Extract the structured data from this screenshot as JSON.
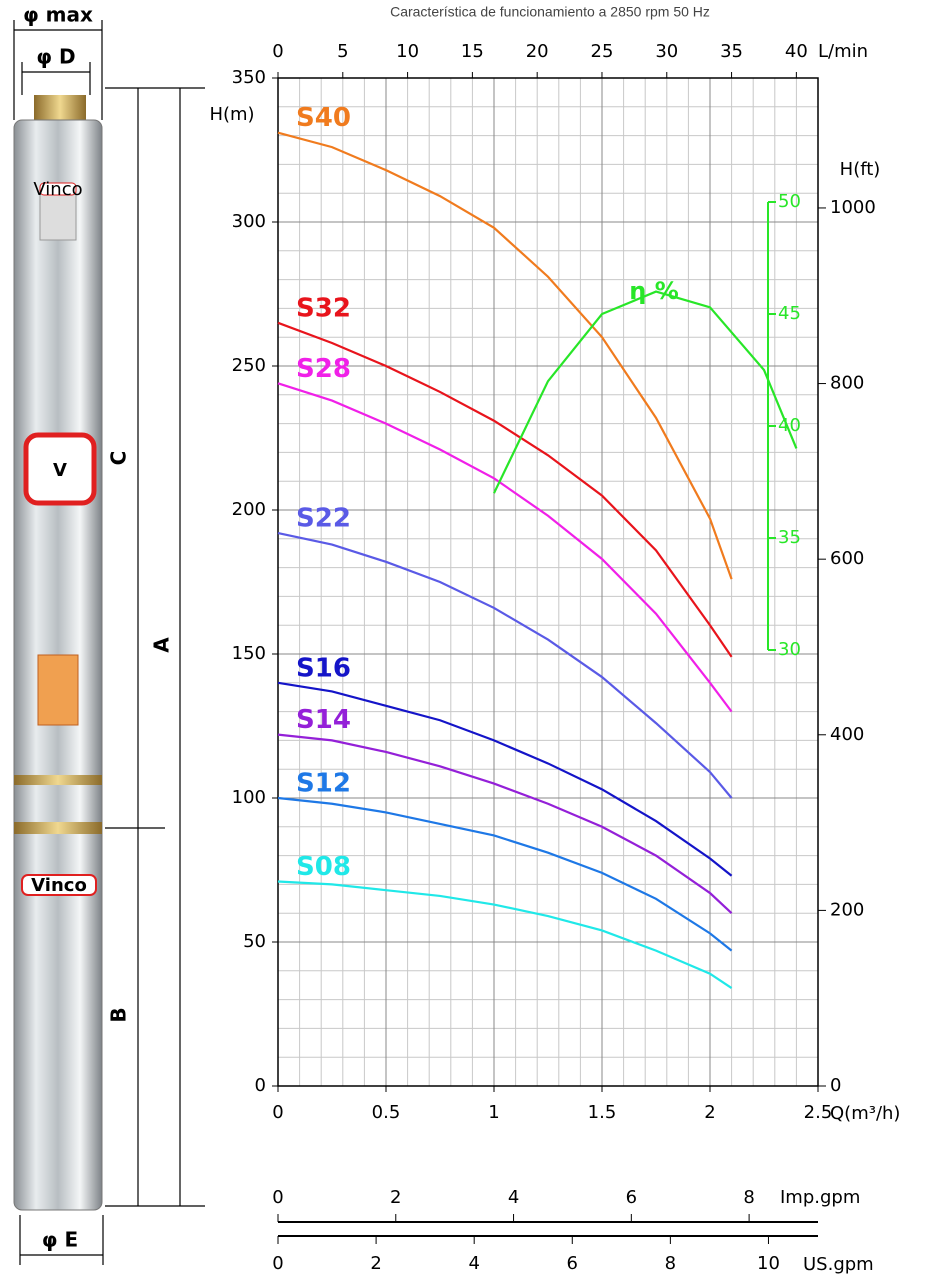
{
  "chart_data": {
    "type": "line",
    "title": "Característica de funcionamiento a 2850 rpm 50 Hz",
    "x_label": "Q(m³/h)",
    "y_label": "H(m)",
    "y3_label": "H(ft)",
    "x2_label": "L/min",
    "x3_label": "Imp.gpm",
    "x4_label": "US.gpm",
    "x": [
      0,
      0.25,
      0.5,
      0.75,
      1.0,
      1.25,
      1.5,
      1.75,
      2.0,
      2.1
    ],
    "xlim": [
      0,
      2.5
    ],
    "xticks": [
      0,
      0.5,
      1,
      1.5,
      2,
      2.5
    ],
    "ylim": [
      0,
      350
    ],
    "yticks": [
      0,
      50,
      100,
      150,
      200,
      250,
      300,
      350
    ],
    "y3lim": [
      0,
      1148
    ],
    "y3ticks": [
      0,
      200,
      400,
      600,
      800,
      1000
    ],
    "x2lim": [
      0,
      41.67
    ],
    "x2ticks": [
      0,
      5,
      10,
      15,
      20,
      25,
      30,
      35,
      40
    ],
    "x3lim": [
      0,
      9.17
    ],
    "x3ticks": [
      0,
      2,
      4,
      6,
      8
    ],
    "x4lim": [
      0,
      11.01
    ],
    "x4ticks": [
      0,
      2,
      4,
      6,
      8,
      10
    ],
    "y2lim": [
      30,
      50
    ],
    "y2ticks": [
      30,
      35,
      40,
      45,
      50
    ],
    "grid": true,
    "series": [
      {
        "name": "S40",
        "color": "#f07b1e",
        "values": [
          331,
          326,
          318,
          309,
          298,
          281,
          260,
          232,
          197,
          176
        ]
      },
      {
        "name": "S32",
        "color": "#e8141c",
        "values": [
          265,
          258,
          250,
          241,
          231,
          219,
          205,
          186,
          160,
          149
        ]
      },
      {
        "name": "S28",
        "color": "#f020e8",
        "values": [
          244,
          238,
          230,
          221,
          211,
          198,
          183,
          164,
          140,
          130
        ]
      },
      {
        "name": "S22",
        "color": "#5a5ae6",
        "values": [
          192,
          188,
          182,
          175,
          166,
          155,
          142,
          126,
          109,
          100
        ]
      },
      {
        "name": "S16",
        "color": "#1414c8",
        "values": [
          140,
          137,
          132,
          127,
          120,
          112,
          103,
          92,
          79,
          73
        ]
      },
      {
        "name": "S14",
        "color": "#9420d8",
        "values": [
          122,
          120,
          116,
          111,
          105,
          98,
          90,
          80,
          67,
          60
        ]
      },
      {
        "name": "S12",
        "color": "#1e78e6",
        "values": [
          100,
          98,
          95,
          91,
          87,
          81,
          74,
          65,
          53,
          47
        ]
      },
      {
        "name": "S08",
        "color": "#20e8e8",
        "values": [
          71,
          70,
          68,
          66,
          63,
          59,
          54,
          47,
          39,
          34
        ]
      },
      {
        "name": "η %",
        "color": "#28e628",
        "axis": "y2",
        "x": [
          1.0,
          1.25,
          1.5,
          1.75,
          2.0,
          2.25,
          2.4
        ],
        "values": [
          37,
          42,
          45,
          46,
          45.3,
          42.5,
          39
        ]
      }
    ]
  },
  "drawing": {
    "phi_max": "φ max",
    "phi_d": "φ D",
    "phi_e": "φ E",
    "dim_a": "A",
    "dim_b": "B",
    "dim_c": "C",
    "logo": "V",
    "brand_top": "Vinco",
    "brand_bottom": "Vinco"
  }
}
